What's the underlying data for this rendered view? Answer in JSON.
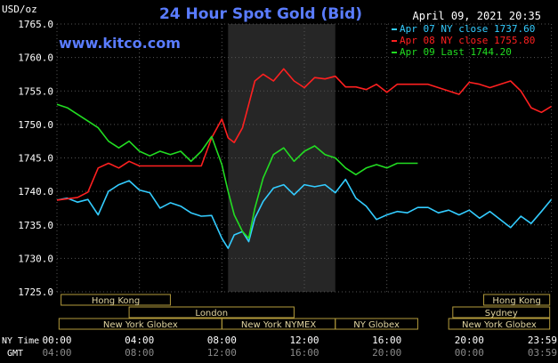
{
  "chart_data": {
    "type": "line",
    "title": "24 Hour Spot Gold (Bid)",
    "watermark": "www.kitco.com",
    "datetime": "April 09, 2021 20:35",
    "ylabel": "USD/oz",
    "ylim": [
      1725,
      1765
    ],
    "y_ticks": [
      "1765.0",
      "1760.0",
      "1755.0",
      "1750.0",
      "1745.0",
      "1740.0",
      "1735.0",
      "1730.0",
      "1725.0"
    ],
    "y_tick_values": [
      1765,
      1760,
      1755,
      1750,
      1745,
      1740,
      1735,
      1730,
      1725
    ],
    "x_range_hours": [
      0,
      24
    ],
    "x_ticks": [
      0,
      4,
      8,
      12,
      16,
      20,
      23.983
    ],
    "x_tick_labels": {
      "ny_row_label": "NY Time",
      "gmt_row_label": "GMT",
      "ny": [
        "00:00",
        "04:00",
        "08:00",
        "12:00",
        "16:00",
        "20:00",
        "23:59"
      ],
      "gmt": [
        "04:00",
        "08:00",
        "12:00",
        "16:00",
        "20:00",
        "00:00",
        "03:59"
      ]
    },
    "grid": true,
    "legend_position": "top-right",
    "shaded_region_hours": [
      8.3,
      13.5
    ],
    "sessions": [
      {
        "label": "Hong Kong",
        "start": 0.2,
        "end": 5.5,
        "row": 1
      },
      {
        "label": "Hong Kong",
        "start": 20.7,
        "end": 23.9,
        "row": 1
      },
      {
        "label": "London",
        "start": 3.5,
        "end": 11.5,
        "row": 2
      },
      {
        "label": "Sydney",
        "start": 19.2,
        "end": 23.9,
        "row": 2
      },
      {
        "label": "New York Globex",
        "start": 0.1,
        "end": 8.0,
        "row": 3
      },
      {
        "label": "New York NYMEX",
        "start": 8.0,
        "end": 13.5,
        "row": 3
      },
      {
        "label": "NY Globex",
        "start": 13.5,
        "end": 17.5,
        "row": 3
      },
      {
        "label": "New York Globex",
        "start": 19.0,
        "end": 23.9,
        "row": 3
      }
    ],
    "series": [
      {
        "name": "Apr 07 NY close 1737.60",
        "color": "#33ccff",
        "x": [
          0,
          0.5,
          1,
          1.5,
          2,
          2.5,
          3,
          3.5,
          4,
          4.5,
          5,
          5.5,
          6,
          6.5,
          7,
          7.5,
          8,
          8.3,
          8.6,
          9,
          9.3,
          9.6,
          10,
          10.5,
          11,
          11.5,
          12,
          12.5,
          13,
          13.5,
          14,
          14.5,
          15,
          15.5,
          16,
          16.5,
          17,
          17.5,
          18,
          18.5,
          19,
          19.5,
          20,
          20.5,
          21,
          21.5,
          22,
          22.5,
          23,
          23.5,
          23.98
        ],
        "y": [
          1738.7,
          1739.0,
          1738.4,
          1738.8,
          1736.5,
          1740.0,
          1741.0,
          1741.6,
          1740.2,
          1739.8,
          1737.5,
          1738.3,
          1737.8,
          1736.8,
          1736.3,
          1736.4,
          1733.0,
          1731.5,
          1733.5,
          1734.0,
          1732.5,
          1736.0,
          1738.5,
          1740.5,
          1741.0,
          1739.5,
          1741.0,
          1740.7,
          1741.0,
          1739.8,
          1741.8,
          1739.0,
          1737.8,
          1735.8,
          1736.5,
          1737.0,
          1736.8,
          1737.6,
          1737.6,
          1736.8,
          1737.2,
          1736.5,
          1737.2,
          1736.0,
          1737.0,
          1735.8,
          1734.6,
          1736.3,
          1735.2,
          1737.0,
          1738.8
        ]
      },
      {
        "name": "Apr 08 NY close 1755.80",
        "color": "#ff2020",
        "x": [
          0,
          0.5,
          1,
          1.5,
          2,
          2.5,
          3,
          3.5,
          4,
          4.5,
          5,
          5.5,
          6,
          6.5,
          7,
          7.5,
          8,
          8.3,
          8.6,
          9,
          9.3,
          9.6,
          10,
          10.5,
          11,
          11.5,
          12,
          12.5,
          13,
          13.5,
          14,
          14.5,
          15,
          15.5,
          16,
          16.5,
          17,
          17.5,
          18,
          18.5,
          19,
          19.5,
          20,
          20.5,
          21,
          21.5,
          22,
          22.5,
          23,
          23.5,
          23.98
        ],
        "y": [
          1738.7,
          1738.9,
          1739.1,
          1739.9,
          1743.5,
          1744.2,
          1743.5,
          1744.5,
          1743.8,
          1743.8,
          1743.8,
          1743.8,
          1743.8,
          1743.8,
          1743.8,
          1748.0,
          1750.8,
          1748.0,
          1747.3,
          1749.5,
          1753.0,
          1756.5,
          1757.5,
          1756.5,
          1758.3,
          1756.5,
          1755.5,
          1757.0,
          1756.8,
          1757.2,
          1755.6,
          1755.6,
          1755.2,
          1756.0,
          1754.8,
          1756.0,
          1756.0,
          1756.0,
          1756.0,
          1755.5,
          1755.0,
          1754.5,
          1756.3,
          1756.0,
          1755.5,
          1756.0,
          1756.5,
          1755.0,
          1752.5,
          1751.8,
          1752.7
        ]
      },
      {
        "name": "Apr 09 Last 1744.20",
        "color": "#22dd22",
        "x": [
          0,
          0.5,
          1,
          1.5,
          2,
          2.5,
          3,
          3.5,
          4,
          4.5,
          5,
          5.5,
          6,
          6.5,
          7,
          7.5,
          8,
          8.3,
          8.6,
          9,
          9.3,
          9.6,
          10,
          10.5,
          11,
          11.5,
          12,
          12.5,
          13,
          13.5,
          14,
          14.5,
          15,
          15.5,
          16,
          16.5,
          17,
          17.5
        ],
        "y": [
          1753.0,
          1752.5,
          1751.5,
          1750.5,
          1749.5,
          1747.5,
          1746.5,
          1747.5,
          1746.0,
          1745.3,
          1746.0,
          1745.5,
          1746.0,
          1744.5,
          1746.0,
          1748.2,
          1744.0,
          1740.0,
          1736.5,
          1734.0,
          1733.0,
          1737.5,
          1742.0,
          1745.5,
          1746.5,
          1744.5,
          1746.0,
          1746.8,
          1745.5,
          1745.0,
          1743.5,
          1742.5,
          1743.5,
          1744.0,
          1743.5,
          1744.2,
          1744.2,
          1744.2
        ]
      }
    ]
  }
}
